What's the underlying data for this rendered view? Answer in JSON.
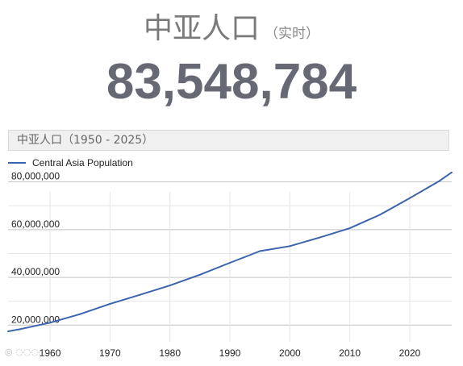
{
  "header": {
    "title": "中亚人口",
    "subtitle": "（实时）",
    "population_counter": "83,548,784"
  },
  "chart_header": {
    "title": "中亚人口（1950 - 2025）"
  },
  "chart_data": {
    "type": "line",
    "title": "中亚人口（1950 - 2025）",
    "xlabel": "",
    "ylabel": "",
    "xlim": [
      1953,
      2027
    ],
    "ylim": [
      13000000,
      88000000
    ],
    "x_ticks": [
      1960,
      1970,
      1980,
      1990,
      2000,
      2010,
      2020
    ],
    "x_tick_labels": [
      "1960",
      "1970",
      "1980",
      "1990",
      "2000",
      "2010",
      "2020"
    ],
    "y_ticks": [
      20000000,
      40000000,
      60000000,
      80000000
    ],
    "y_tick_labels": [
      "20,000,000",
      "40,000,000",
      "60,000,000",
      "80,000,000"
    ],
    "grid": true,
    "legend": "top-left",
    "colors": {
      "series": "#3a64ad",
      "grid": "#cccccc"
    },
    "series": [
      {
        "name": "Central Asia Population",
        "x": [
          1953,
          1955,
          1960,
          1965,
          1970,
          1975,
          1980,
          1985,
          1990,
          1995,
          2000,
          2005,
          2010,
          2015,
          2020,
          2025,
          2027
        ],
        "y": [
          17400000,
          18300000,
          21000000,
          24600000,
          28900000,
          32700000,
          36600000,
          41100000,
          46100000,
          51000000,
          53100000,
          56700000,
          60600000,
          66200000,
          73200000,
          80500000,
          84000000
        ]
      }
    ]
  }
}
